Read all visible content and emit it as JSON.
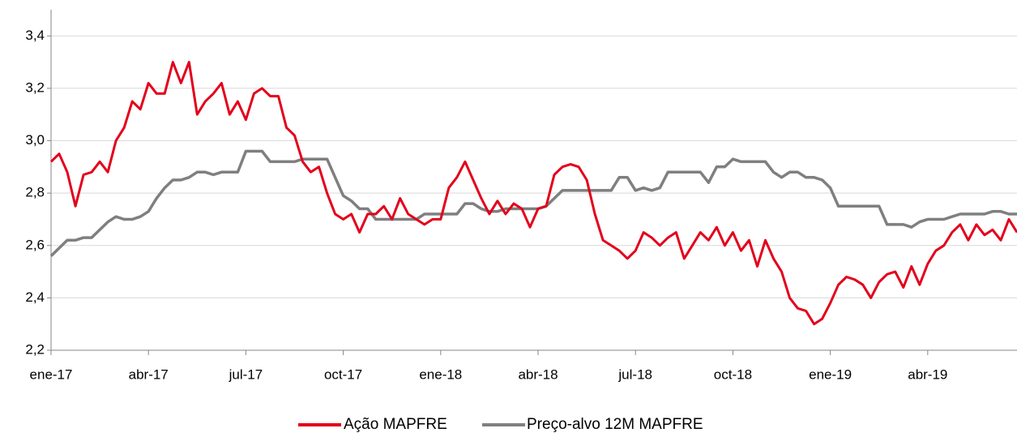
{
  "chart_data": {
    "type": "line",
    "categories": [
      "ene-17",
      null,
      null,
      null,
      null,
      null,
      null,
      null,
      null,
      null,
      null,
      null,
      "abr-17",
      null,
      null,
      null,
      null,
      null,
      null,
      null,
      null,
      null,
      null,
      null,
      "jul-17",
      null,
      null,
      null,
      null,
      null,
      null,
      null,
      null,
      null,
      null,
      null,
      "oct-17",
      null,
      null,
      null,
      null,
      null,
      null,
      null,
      null,
      null,
      null,
      null,
      "ene-18",
      null,
      null,
      null,
      null,
      null,
      null,
      null,
      null,
      null,
      null,
      null,
      "abr-18",
      null,
      null,
      null,
      null,
      null,
      null,
      null,
      null,
      null,
      null,
      null,
      "jul-18",
      null,
      null,
      null,
      null,
      null,
      null,
      null,
      null,
      null,
      null,
      null,
      "oct-18",
      null,
      null,
      null,
      null,
      null,
      null,
      null,
      null,
      null,
      null,
      null,
      "ene-19",
      null,
      null,
      null,
      null,
      null,
      null,
      null,
      null,
      null,
      null,
      null,
      "abr-19",
      null,
      null,
      null,
      null,
      null,
      null,
      null,
      null,
      null,
      null,
      null
    ],
    "series": [
      {
        "name": "Ação MAPFRE",
        "color": "#e3001b",
        "values": [
          2.92,
          2.95,
          2.88,
          2.75,
          2.87,
          2.88,
          2.92,
          2.88,
          3.0,
          3.05,
          3.15,
          3.12,
          3.22,
          3.18,
          3.18,
          3.3,
          3.22,
          3.3,
          3.1,
          3.15,
          3.18,
          3.22,
          3.1,
          3.15,
          3.08,
          3.18,
          3.2,
          3.17,
          3.17,
          3.05,
          3.02,
          2.92,
          2.88,
          2.9,
          2.8,
          2.72,
          2.7,
          2.72,
          2.65,
          2.72,
          2.72,
          2.75,
          2.7,
          2.78,
          2.72,
          2.7,
          2.68,
          2.7,
          2.7,
          2.82,
          2.86,
          2.92,
          2.85,
          2.78,
          2.72,
          2.77,
          2.72,
          2.76,
          2.74,
          2.67,
          2.74,
          2.75,
          2.87,
          2.9,
          2.91,
          2.9,
          2.85,
          2.72,
          2.62,
          2.6,
          2.58,
          2.55,
          2.58,
          2.65,
          2.63,
          2.6,
          2.63,
          2.65,
          2.55,
          2.6,
          2.65,
          2.62,
          2.67,
          2.6,
          2.65,
          2.58,
          2.62,
          2.52,
          2.62,
          2.55,
          2.5,
          2.4,
          2.36,
          2.35,
          2.3,
          2.32,
          2.38,
          2.45,
          2.48,
          2.47,
          2.45,
          2.4,
          2.46,
          2.49,
          2.5,
          2.44,
          2.52,
          2.45,
          2.53,
          2.58,
          2.6,
          2.65,
          2.68,
          2.62,
          2.68,
          2.64,
          2.66,
          2.62,
          2.7,
          2.65
        ]
      },
      {
        "name": "Preço-alvo 12M MAPFRE",
        "color": "#7f7f7f",
        "values": [
          2.56,
          2.59,
          2.62,
          2.62,
          2.63,
          2.63,
          2.66,
          2.69,
          2.71,
          2.7,
          2.7,
          2.71,
          2.73,
          2.78,
          2.82,
          2.85,
          2.85,
          2.86,
          2.88,
          2.88,
          2.87,
          2.88,
          2.88,
          2.88,
          2.96,
          2.96,
          2.96,
          2.92,
          2.92,
          2.92,
          2.92,
          2.93,
          2.93,
          2.93,
          2.93,
          2.86,
          2.79,
          2.77,
          2.74,
          2.74,
          2.7,
          2.7,
          2.7,
          2.7,
          2.7,
          2.7,
          2.72,
          2.72,
          2.72,
          2.72,
          2.72,
          2.76,
          2.76,
          2.74,
          2.73,
          2.73,
          2.74,
          2.74,
          2.74,
          2.74,
          2.74,
          2.75,
          2.78,
          2.81,
          2.81,
          2.81,
          2.81,
          2.81,
          2.81,
          2.81,
          2.86,
          2.86,
          2.81,
          2.82,
          2.81,
          2.82,
          2.88,
          2.88,
          2.88,
          2.88,
          2.88,
          2.84,
          2.9,
          2.9,
          2.93,
          2.92,
          2.92,
          2.92,
          2.92,
          2.88,
          2.86,
          2.88,
          2.88,
          2.86,
          2.86,
          2.85,
          2.82,
          2.75,
          2.75,
          2.75,
          2.75,
          2.75,
          2.75,
          2.68,
          2.68,
          2.68,
          2.67,
          2.69,
          2.7,
          2.7,
          2.7,
          2.71,
          2.72,
          2.72,
          2.72,
          2.72,
          2.73,
          2.73,
          2.72,
          2.72
        ]
      }
    ],
    "ylim": [
      2.2,
      3.5
    ],
    "yticks": [
      {
        "value": 2.2,
        "label": "2,2"
      },
      {
        "value": 2.4,
        "label": "2,4"
      },
      {
        "value": 2.6,
        "label": "2,6"
      },
      {
        "value": 2.8,
        "label": "2,8"
      },
      {
        "value": 3.0,
        "label": "3,0"
      },
      {
        "value": 3.2,
        "label": "3,2"
      },
      {
        "value": 3.4,
        "label": "3,4"
      }
    ],
    "grid": true,
    "legend": "bottom"
  }
}
